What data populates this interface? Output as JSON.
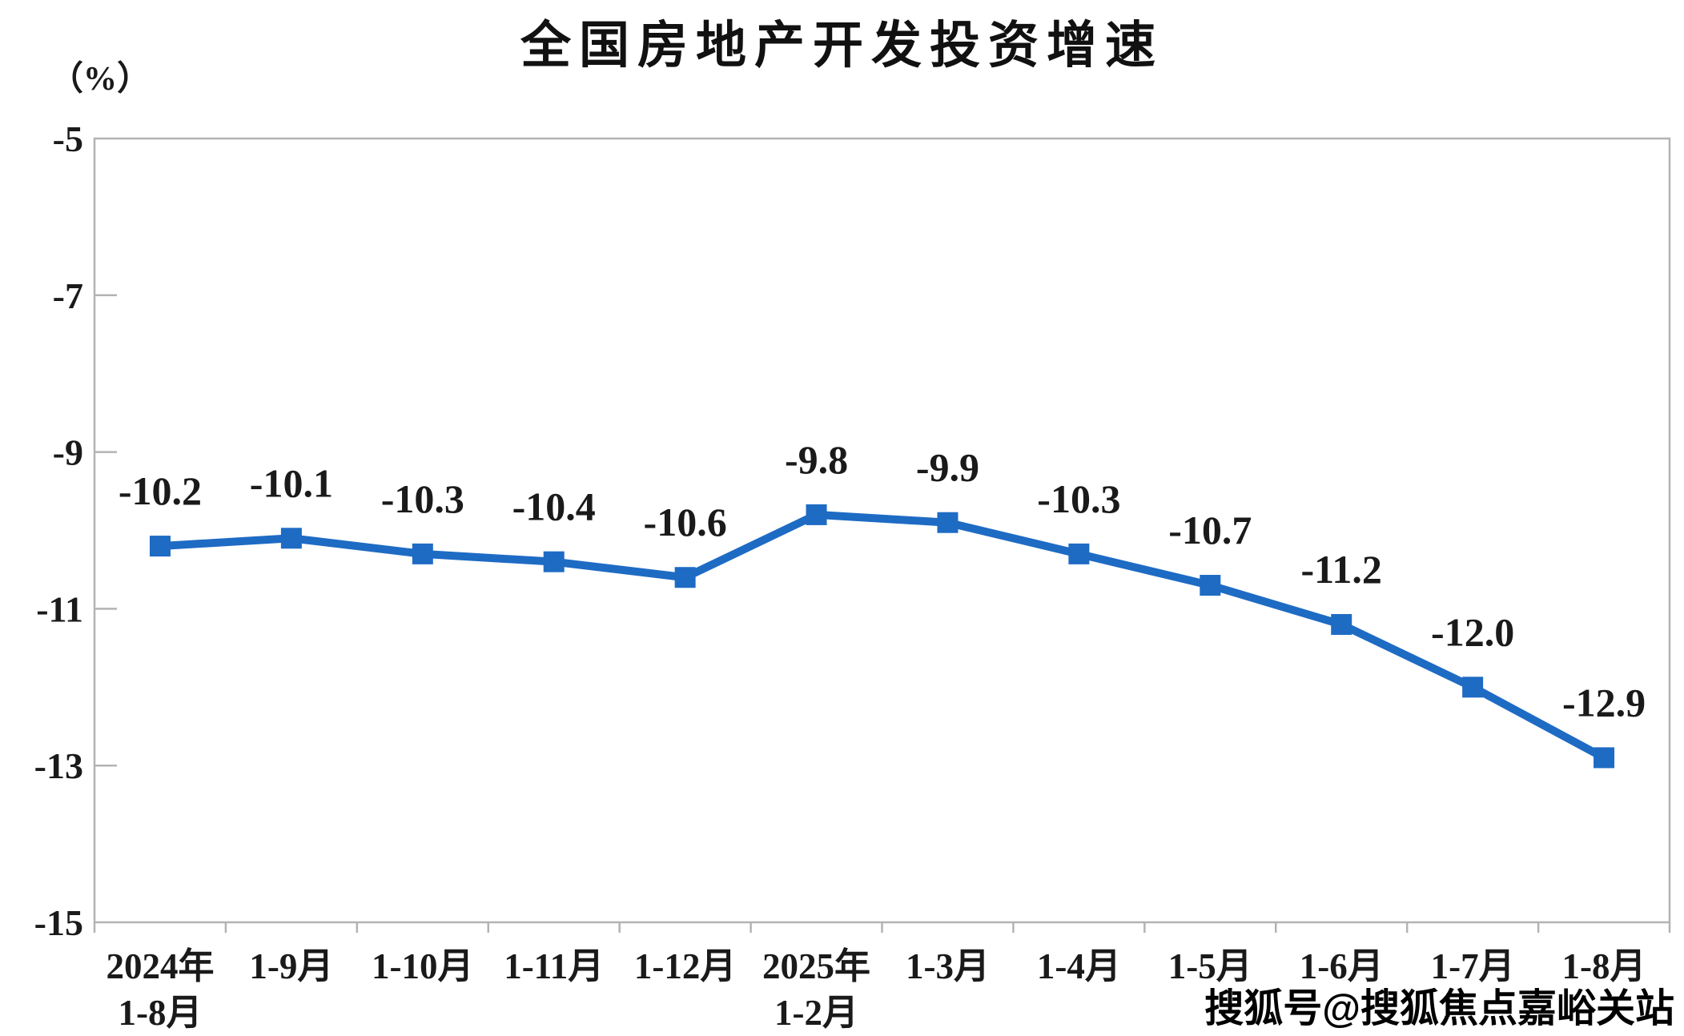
{
  "chart_data": {
    "type": "line",
    "title": "全国房地产开发投资增速",
    "unit_label": "（%）",
    "categories": [
      {
        "line1": "2024年",
        "line2": "1-8月"
      },
      {
        "line1": "1-9月"
      },
      {
        "line1": "1-10月"
      },
      {
        "line1": "1-11月"
      },
      {
        "line1": "1-12月"
      },
      {
        "line1": "2025年",
        "line2": "1-2月"
      },
      {
        "line1": "1-3月"
      },
      {
        "line1": "1-4月"
      },
      {
        "line1": "1-5月"
      },
      {
        "line1": "1-6月"
      },
      {
        "line1": "1-7月"
      },
      {
        "line1": "1-8月"
      }
    ],
    "series": [
      {
        "name": "全国房地产开发投资增速",
        "values": [
          -10.2,
          -10.1,
          -10.3,
          -10.4,
          -10.6,
          -9.8,
          -9.9,
          -10.3,
          -10.7,
          -11.2,
          -12.0,
          -12.9
        ]
      }
    ],
    "data_labels": [
      "-10.2",
      "-10.1",
      "-10.3",
      "-10.4",
      "-10.6",
      "-9.8",
      "-9.9",
      "-10.3",
      "-10.7",
      "-11.2",
      "-12.0",
      "-12.9"
    ],
    "y_axis": {
      "ticks": [
        -5,
        -7,
        -9,
        -11,
        -13,
        -15
      ],
      "max": -5,
      "min": -15
    },
    "grid": false,
    "legend": false,
    "colors": {
      "line": "#1e6bc4",
      "marker": "#1e6bc4",
      "axis": "#b3b3b3",
      "text": "#1a1a1a"
    }
  },
  "watermark": {
    "text": "搜狐号@搜狐焦点嘉峪关站"
  }
}
